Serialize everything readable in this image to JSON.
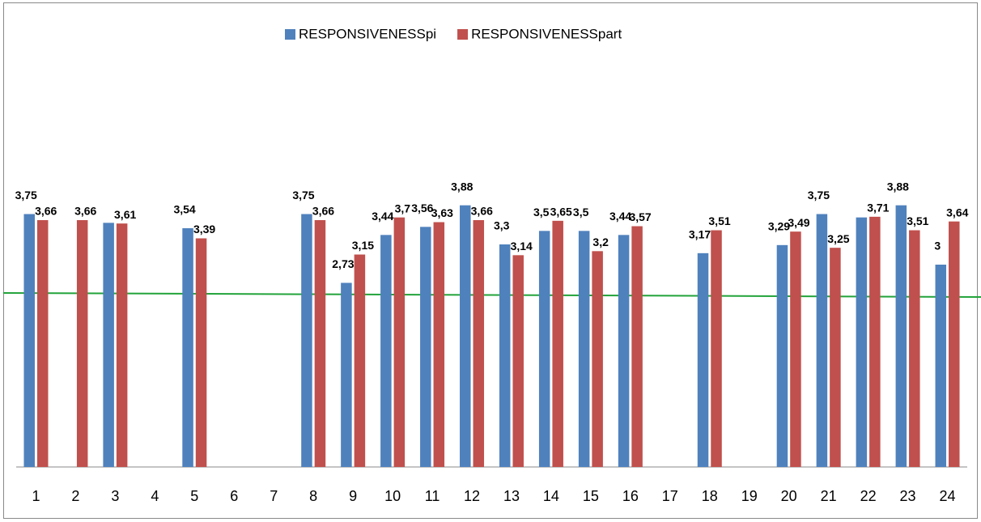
{
  "chart_data": {
    "type": "bar",
    "categories": [
      "1",
      "2",
      "3",
      "4",
      "5",
      "6",
      "7",
      "8",
      "9",
      "10",
      "11",
      "12",
      "13",
      "14",
      "15",
      "16",
      "17",
      "18",
      "19",
      "20",
      "21",
      "22",
      "23",
      "24"
    ],
    "series": [
      {
        "name": "RESPONSIVENESSpi",
        "color": "#4f81bd",
        "values": [
          3.75,
          null,
          3.62,
          null,
          3.54,
          null,
          null,
          3.75,
          2.73,
          3.44,
          3.56,
          3.88,
          3.3,
          3.5,
          3.5,
          3.44,
          null,
          3.17,
          null,
          3.29,
          3.75,
          3.7,
          3.88,
          3
        ],
        "value_labels": [
          "3,75",
          null,
          null,
          null,
          "3,54",
          null,
          null,
          "3,75",
          "2,73",
          "3,44",
          "3,56",
          "3,88",
          "3,3",
          "3,5",
          "3,5",
          "3,44",
          null,
          "3,17",
          null,
          "3,29",
          "3,75",
          null,
          "3,88",
          "3"
        ]
      },
      {
        "name": "RESPONSIVENESSpart",
        "color": "#c0504d",
        "values": [
          3.66,
          3.66,
          3.61,
          null,
          3.39,
          null,
          null,
          3.66,
          3.15,
          3.7,
          3.63,
          3.66,
          3.14,
          3.65,
          3.2,
          3.57,
          null,
          3.51,
          null,
          3.49,
          3.25,
          3.71,
          3.51,
          3.64
        ],
        "value_labels": [
          "3,66",
          "3,66",
          "3,61",
          null,
          "3,39",
          null,
          null,
          "3,66",
          "3,15",
          "3,7",
          "3,63",
          "3,66",
          "3,14",
          "3,65",
          "3,2",
          "3,57",
          null,
          "3,51",
          null,
          "3,49",
          "3,25",
          "3,71",
          "3,51",
          "3,64"
        ]
      }
    ],
    "ylim": [
      0,
      6
    ],
    "legend": "top"
  }
}
